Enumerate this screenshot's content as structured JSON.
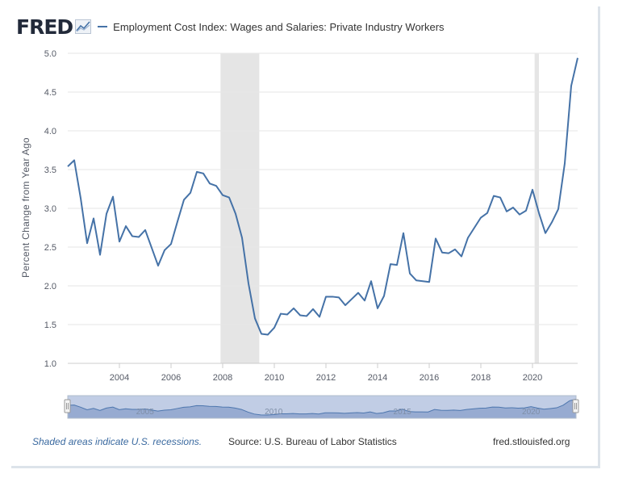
{
  "header": {
    "logo_text": "FRED",
    "series_title": "Employment Cost Index: Wages and Salaries: Private Industry Workers"
  },
  "footer": {
    "recession_note": "Shaded areas indicate U.S. recessions.",
    "source": "Source: U.S. Bureau of Labor Statistics",
    "site": "fred.stlouisfed.org"
  },
  "navigator": {
    "labels": [
      "2005",
      "2010",
      "2015",
      "2020"
    ]
  },
  "colors": {
    "line": "#4572a7",
    "recession": "#e5e5e5",
    "grid": "#e6e6e6",
    "navigator_fill": "#a7b9d6",
    "logo": "#222a3a"
  },
  "chart_data": {
    "type": "line",
    "title": "",
    "xlabel": "",
    "ylabel": "Percent Change from Year Ago",
    "ylim": [
      1.0,
      5.0
    ],
    "xlim": [
      "2002-01-01",
      "2021-10-01"
    ],
    "yticks": [
      "1.0",
      "1.5",
      "2.0",
      "2.5",
      "3.0",
      "3.5",
      "4.0",
      "4.5",
      "5.0"
    ],
    "xticks": [
      "2004",
      "2006",
      "2008",
      "2010",
      "2012",
      "2014",
      "2016",
      "2018",
      "2020"
    ],
    "grid": true,
    "recessions": [
      [
        "2007-12-01",
        "2009-06-01"
      ],
      [
        "2020-02-01",
        "2020-04-01"
      ]
    ],
    "series": [
      {
        "name": "Employment Cost Index: Wages and Salaries: Private Industry Workers",
        "x": [
          "2002-01",
          "2002-04",
          "2002-07",
          "2002-10",
          "2003-01",
          "2003-04",
          "2003-07",
          "2003-10",
          "2004-01",
          "2004-04",
          "2004-07",
          "2004-10",
          "2005-01",
          "2005-04",
          "2005-07",
          "2005-10",
          "2006-01",
          "2006-04",
          "2006-07",
          "2006-10",
          "2007-01",
          "2007-04",
          "2007-07",
          "2007-10",
          "2008-01",
          "2008-04",
          "2008-07",
          "2008-10",
          "2009-01",
          "2009-04",
          "2009-07",
          "2009-10",
          "2010-01",
          "2010-04",
          "2010-07",
          "2010-10",
          "2011-01",
          "2011-04",
          "2011-07",
          "2011-10",
          "2012-01",
          "2012-04",
          "2012-07",
          "2012-10",
          "2013-01",
          "2013-04",
          "2013-07",
          "2013-10",
          "2014-01",
          "2014-04",
          "2014-07",
          "2014-10",
          "2015-01",
          "2015-04",
          "2015-07",
          "2015-10",
          "2016-01",
          "2016-04",
          "2016-07",
          "2016-10",
          "2017-01",
          "2017-04",
          "2017-07",
          "2017-10",
          "2018-01",
          "2018-04",
          "2018-07",
          "2018-10",
          "2019-01",
          "2019-04",
          "2019-07",
          "2019-10",
          "2020-01",
          "2020-04",
          "2020-07",
          "2020-10",
          "2021-01",
          "2021-04",
          "2021-07",
          "2021-10"
        ],
        "values": [
          3.54,
          3.62,
          3.13,
          2.55,
          2.87,
          2.4,
          2.93,
          3.15,
          2.57,
          2.77,
          2.64,
          2.63,
          2.72,
          2.49,
          2.26,
          2.46,
          2.54,
          2.83,
          3.11,
          3.2,
          3.47,
          3.45,
          3.32,
          3.29,
          3.17,
          3.14,
          2.93,
          2.62,
          2.03,
          1.58,
          1.38,
          1.37,
          1.46,
          1.64,
          1.63,
          1.71,
          1.62,
          1.61,
          1.7,
          1.6,
          1.86,
          1.86,
          1.85,
          1.75,
          1.83,
          1.91,
          1.81,
          2.06,
          1.71,
          1.87,
          2.28,
          2.27,
          2.68,
          2.16,
          2.07,
          2.06,
          2.05,
          2.61,
          2.43,
          2.42,
          2.47,
          2.38,
          2.62,
          2.75,
          2.88,
          2.94,
          3.16,
          3.14,
          2.96,
          3.01,
          2.92,
          2.97,
          3.24,
          2.94,
          2.68,
          2.82,
          2.99,
          3.58,
          4.58,
          4.94
        ]
      }
    ]
  }
}
